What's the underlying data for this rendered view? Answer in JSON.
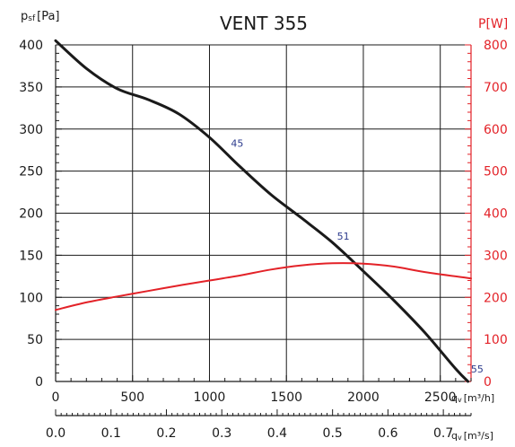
{
  "chart_data": {
    "type": "line",
    "title": "VENT 355",
    "left_axis": {
      "label_main": "p",
      "label_sub": "sf",
      "label_unit": "[Pa]",
      "ylim": [
        0,
        400
      ],
      "ticks": [
        0,
        50,
        100,
        150,
        200,
        250,
        300,
        350,
        400
      ]
    },
    "right_axis": {
      "label": "P[W]",
      "color": "#e32228",
      "ylim": [
        0,
        800
      ],
      "ticks": [
        0,
        100,
        200,
        300,
        400,
        500,
        600,
        700,
        800
      ]
    },
    "x_axis": {
      "label_main": "q",
      "label_sub": "v",
      "label_unit": "[m³/h]",
      "xlim": [
        0,
        2700
      ],
      "ticks": [
        0,
        500,
        1000,
        1500,
        2000,
        2500
      ],
      "grid": true
    },
    "x_axis_secondary": {
      "label_main": "q",
      "label_sub": "v",
      "label_unit": "[m³/s]",
      "ticks": [
        "0.0",
        "0.1",
        "0.2",
        "0.3",
        "0.4",
        "0.5",
        "0.6",
        "0.7"
      ],
      "tick_values": [
        0.0,
        0.1,
        0.2,
        0.3,
        0.4,
        0.5,
        0.6,
        0.7
      ]
    },
    "series": [
      {
        "axis": "left",
        "color": "#1a1a1a",
        "points": [
          [
            0,
            405
          ],
          [
            200,
            372
          ],
          [
            400,
            348
          ],
          [
            600,
            335
          ],
          [
            800,
            318
          ],
          [
            1000,
            290
          ],
          [
            1200,
            255
          ],
          [
            1400,
            222
          ],
          [
            1600,
            194
          ],
          [
            1800,
            165
          ],
          [
            2000,
            131
          ],
          [
            2200,
            96
          ],
          [
            2400,
            58
          ],
          [
            2600,
            15
          ],
          [
            2680,
            0
          ]
        ]
      },
      {
        "axis": "right",
        "color": "#e32228",
        "points": [
          [
            0,
            170
          ],
          [
            200,
            188
          ],
          [
            400,
            202
          ],
          [
            600,
            215
          ],
          [
            800,
            228
          ],
          [
            1000,
            240
          ],
          [
            1200,
            252
          ],
          [
            1400,
            266
          ],
          [
            1600,
            276
          ],
          [
            1800,
            281
          ],
          [
            2000,
            280
          ],
          [
            2200,
            273
          ],
          [
            2400,
            260
          ],
          [
            2700,
            245
          ]
        ]
      }
    ],
    "annotations": [
      {
        "text": "45",
        "x": 1180,
        "y": 283
      },
      {
        "text": "51",
        "x": 1870,
        "y": 173
      },
      {
        "text": "55",
        "x": 2740,
        "y": 15
      }
    ]
  }
}
